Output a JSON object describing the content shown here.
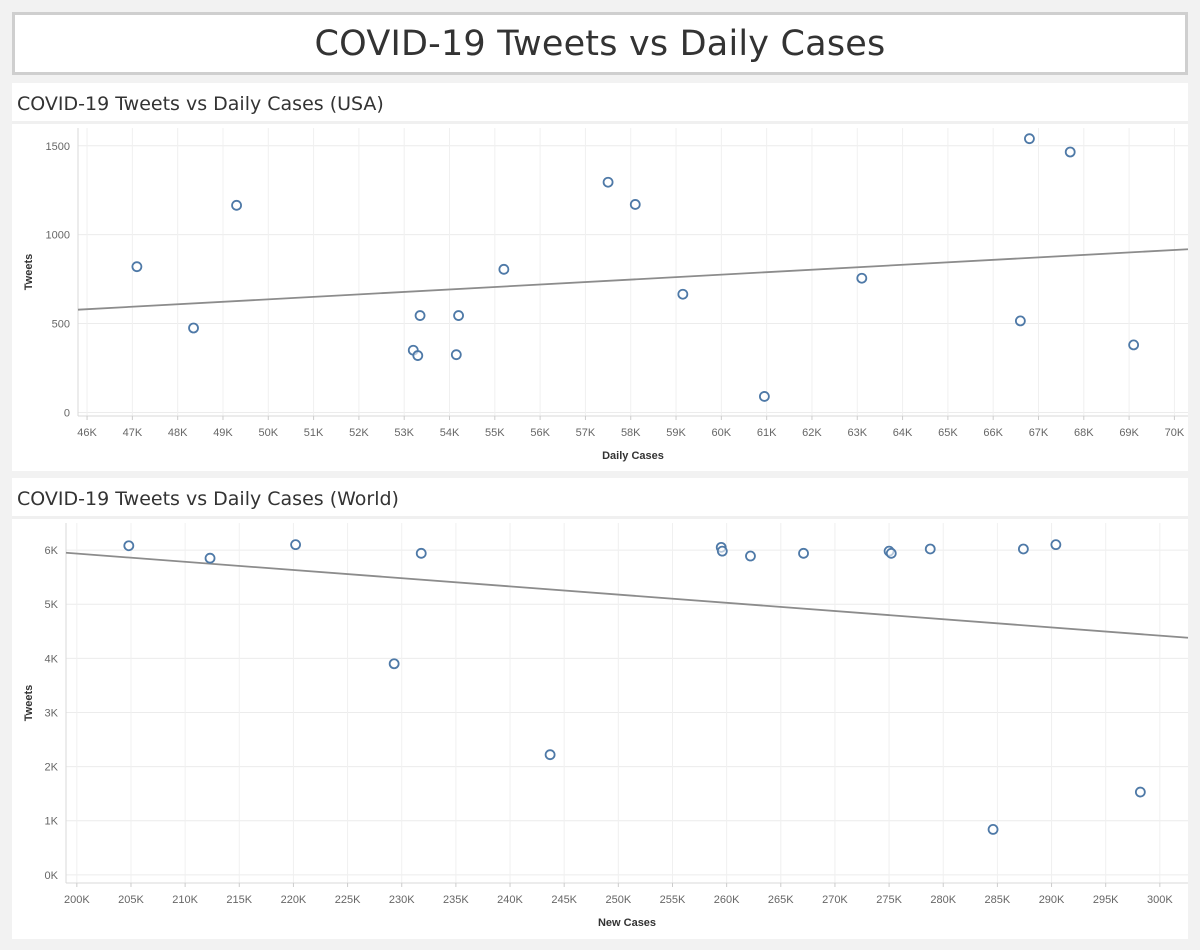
{
  "title": "COVID-19 Tweets vs Daily Cases",
  "chart_data": [
    {
      "type": "scatter",
      "title": "COVID-19 Tweets vs Daily Cases (USA)",
      "xlabel": "Daily Cases",
      "ylabel": "Tweets",
      "xlim": [
        45800,
        70300
      ],
      "ylim": [
        -20,
        1600
      ],
      "xticks": [
        46000,
        47000,
        48000,
        49000,
        50000,
        51000,
        52000,
        53000,
        54000,
        55000,
        56000,
        57000,
        58000,
        59000,
        60000,
        61000,
        62000,
        63000,
        64000,
        65000,
        66000,
        67000,
        68000,
        69000,
        70000
      ],
      "xtick_labels": [
        "46K",
        "47K",
        "48K",
        "49K",
        "50K",
        "51K",
        "52K",
        "53K",
        "54K",
        "55K",
        "56K",
        "57K",
        "58K",
        "59K",
        "60K",
        "61K",
        "62K",
        "63K",
        "64K",
        "65K",
        "66K",
        "67K",
        "68K",
        "69K",
        "70K"
      ],
      "yticks": [
        0,
        500,
        1000,
        1500
      ],
      "ytick_labels": [
        "0",
        "500",
        "1000",
        "1500"
      ],
      "grid": true,
      "marker_color": "#4e79a7",
      "trend_color": "#8c8c8c",
      "points": [
        {
          "x": 47100,
          "y": 820
        },
        {
          "x": 48350,
          "y": 475
        },
        {
          "x": 49300,
          "y": 1165
        },
        {
          "x": 53200,
          "y": 350
        },
        {
          "x": 53300,
          "y": 320
        },
        {
          "x": 53350,
          "y": 545
        },
        {
          "x": 54150,
          "y": 325
        },
        {
          "x": 54200,
          "y": 545
        },
        {
          "x": 55200,
          "y": 805
        },
        {
          "x": 57500,
          "y": 1295
        },
        {
          "x": 58100,
          "y": 1170
        },
        {
          "x": 59150,
          "y": 665
        },
        {
          "x": 60950,
          "y": 90
        },
        {
          "x": 63100,
          "y": 755
        },
        {
          "x": 66600,
          "y": 515
        },
        {
          "x": 66800,
          "y": 1540
        },
        {
          "x": 67700,
          "y": 1465
        },
        {
          "x": 69100,
          "y": 380
        }
      ],
      "trend": [
        {
          "x": 45800,
          "y": 578
        },
        {
          "x": 70300,
          "y": 918
        }
      ]
    },
    {
      "type": "scatter",
      "title": "COVID-19 Tweets vs Daily Cases (World)",
      "xlabel": "New Cases",
      "ylabel": "Tweets",
      "xlim": [
        199000,
        302600
      ],
      "ylim": [
        -150,
        6500
      ],
      "xticks": [
        200000,
        205000,
        210000,
        215000,
        220000,
        225000,
        230000,
        235000,
        240000,
        245000,
        250000,
        255000,
        260000,
        265000,
        270000,
        275000,
        280000,
        285000,
        290000,
        295000,
        300000
      ],
      "xtick_labels": [
        "200K",
        "205K",
        "210K",
        "215K",
        "220K",
        "225K",
        "230K",
        "235K",
        "240K",
        "245K",
        "250K",
        "255K",
        "260K",
        "265K",
        "270K",
        "275K",
        "280K",
        "285K",
        "290K",
        "295K",
        "300K"
      ],
      "yticks": [
        0,
        1000,
        2000,
        3000,
        4000,
        5000,
        6000
      ],
      "ytick_labels": [
        "0K",
        "1K",
        "2K",
        "3K",
        "4K",
        "5K",
        "6K"
      ],
      "grid": true,
      "marker_color": "#4e79a7",
      "trend_color": "#8c8c8c",
      "points": [
        {
          "x": 204800,
          "y": 6080
        },
        {
          "x": 212300,
          "y": 5850
        },
        {
          "x": 220200,
          "y": 6100
        },
        {
          "x": 229300,
          "y": 3900
        },
        {
          "x": 231800,
          "y": 5940
        },
        {
          "x": 243700,
          "y": 2220
        },
        {
          "x": 259500,
          "y": 6050
        },
        {
          "x": 259600,
          "y": 5980
        },
        {
          "x": 262200,
          "y": 5890
        },
        {
          "x": 267100,
          "y": 5940
        },
        {
          "x": 275000,
          "y": 5980
        },
        {
          "x": 275200,
          "y": 5940
        },
        {
          "x": 278800,
          "y": 6020
        },
        {
          "x": 284600,
          "y": 840
        },
        {
          "x": 287400,
          "y": 6020
        },
        {
          "x": 290400,
          "y": 6100
        },
        {
          "x": 298200,
          "y": 1530
        }
      ],
      "trend": [
        {
          "x": 199000,
          "y": 5950
        },
        {
          "x": 302600,
          "y": 4380
        }
      ]
    }
  ]
}
